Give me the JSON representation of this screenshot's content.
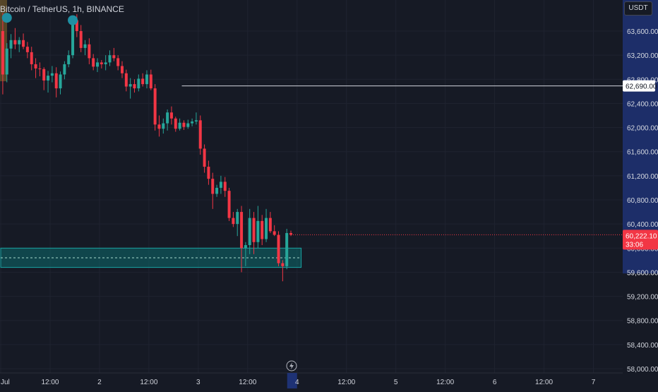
{
  "header": {
    "title": "Bitcoin / TetherUS, 1h, BINANCE",
    "currency": "USDT"
  },
  "price_label": {
    "value": "60,222.10",
    "countdown": "33:06"
  },
  "hline_label": "62,690.00",
  "colors": {
    "background": "#161a25",
    "up": "#26a69a",
    "down": "#f23645",
    "grid": "#1f2330",
    "zone_fill": "#0d6b6e",
    "zone_border": "#1aa3a3",
    "hline": "#d1d4dc",
    "axis_text": "#d1d4dc",
    "price_label_bg": "#f23645",
    "highlight_bg": "#1e3275",
    "marker": "#1f8fa3",
    "marker_band": "#8a6a2a"
  },
  "chart_data": {
    "type": "candlestick",
    "title": "Bitcoin / TetherUS, 1h, BINANCE",
    "ylim": [
      57950,
      63950
    ],
    "y_ticks": [
      "63,600.00",
      "63,200.00",
      "62,800.00",
      "62,400.00",
      "62,000.00",
      "61,600.00",
      "61,200.00",
      "60,800.00",
      "60,400.00",
      "60,000.00",
      "59,600.00",
      "59,200.00",
      "58,800.00",
      "58,400.00",
      "58,000.00"
    ],
    "y_tick_values": [
      63600,
      63200,
      62800,
      62400,
      62000,
      61600,
      61200,
      60800,
      60400,
      60000,
      59600,
      59200,
      58800,
      58400,
      58000
    ],
    "x_ticks": [
      "Jul",
      "12:00",
      "2",
      "12:00",
      "3",
      "12:00",
      "4",
      "12:00",
      "5",
      "12:00",
      "6",
      "12:00",
      "7"
    ],
    "x_tick_hours": [
      0,
      12,
      24,
      36,
      48,
      60,
      72,
      84,
      96,
      108,
      120,
      132,
      144
    ],
    "highlight_x_tick": 6,
    "candles": [
      [
        0.5,
        63600,
        63900,
        62550,
        62880
      ],
      [
        1.5,
        62880,
        63400,
        62750,
        63310
      ],
      [
        2.5,
        63310,
        63550,
        63150,
        63450
      ],
      [
        3.5,
        63450,
        63650,
        63300,
        63380
      ],
      [
        4.5,
        63380,
        63500,
        63250,
        63450
      ],
      [
        5.5,
        63450,
        63560,
        63300,
        63340
      ],
      [
        6.5,
        63340,
        63420,
        63150,
        63250
      ],
      [
        7.5,
        63250,
        63340,
        62950,
        63050
      ],
      [
        8.5,
        63050,
        63150,
        62820,
        62980
      ],
      [
        9.5,
        62980,
        63080,
        62850,
        62970
      ],
      [
        10.5,
        62970,
        63000,
        62620,
        62780
      ],
      [
        11.5,
        62780,
        62940,
        62580,
        62860
      ],
      [
        12.5,
        62860,
        63020,
        62750,
        62900
      ],
      [
        13.5,
        62900,
        63000,
        62500,
        62650
      ],
      [
        14.5,
        62650,
        62930,
        62550,
        62880
      ],
      [
        15.5,
        62880,
        63100,
        62800,
        63050
      ],
      [
        16.5,
        63050,
        63280,
        63000,
        63200
      ],
      [
        17.5,
        63200,
        63850,
        63150,
        63780
      ],
      [
        18.5,
        63780,
        63880,
        63500,
        63600
      ],
      [
        19.5,
        63600,
        63700,
        63250,
        63320
      ],
      [
        20.5,
        63320,
        63450,
        63200,
        63380
      ],
      [
        21.5,
        63380,
        63480,
        63050,
        63150
      ],
      [
        22.5,
        63150,
        63220,
        62950,
        63010
      ],
      [
        23.5,
        63010,
        63150,
        62920,
        63080
      ],
      [
        24.5,
        63080,
        63120,
        62980,
        63050
      ],
      [
        25.5,
        63050,
        63200,
        62950,
        63080
      ],
      [
        26.5,
        63080,
        63280,
        63020,
        63200
      ],
      [
        27.5,
        63200,
        63320,
        63100,
        63150
      ],
      [
        28.5,
        63150,
        63200,
        62950,
        63020
      ],
      [
        29.5,
        63020,
        63100,
        62820,
        62900
      ],
      [
        30.5,
        62900,
        62960,
        62600,
        62680
      ],
      [
        31.5,
        62680,
        62820,
        62480,
        62720
      ],
      [
        32.5,
        62720,
        62800,
        62580,
        62650
      ],
      [
        33.5,
        62650,
        62880,
        62600,
        62810
      ],
      [
        34.5,
        62810,
        62900,
        62680,
        62720
      ],
      [
        35.5,
        62720,
        62950,
        62650,
        62880
      ],
      [
        36.5,
        62880,
        62960,
        62620,
        62650
      ],
      [
        37.5,
        62650,
        62720,
        61950,
        62050
      ],
      [
        38.5,
        62050,
        62200,
        61850,
        61980
      ],
      [
        39.5,
        61980,
        62150,
        61900,
        62070
      ],
      [
        40.5,
        62070,
        62300,
        61950,
        62250
      ],
      [
        41.5,
        62250,
        62350,
        62050,
        62150
      ],
      [
        42.5,
        62150,
        62180,
        61930,
        61980
      ],
      [
        43.5,
        61980,
        62150,
        61950,
        62080
      ],
      [
        44.5,
        62080,
        62120,
        61960,
        62010
      ],
      [
        45.5,
        62010,
        62130,
        61980,
        62070
      ],
      [
        46.5,
        62070,
        62150,
        62020,
        62100
      ],
      [
        47.5,
        62100,
        62250,
        62050,
        62120
      ],
      [
        48.5,
        62120,
        62200,
        61550,
        61650
      ],
      [
        49.5,
        61650,
        61720,
        61250,
        61350
      ],
      [
        50.5,
        61350,
        61450,
        61050,
        61150
      ],
      [
        51.5,
        61150,
        61250,
        60650,
        60900
      ],
      [
        52.5,
        60900,
        61050,
        60850,
        61000
      ],
      [
        53.5,
        61000,
        61200,
        60900,
        61100
      ],
      [
        54.5,
        61100,
        61180,
        60850,
        60950
      ],
      [
        55.5,
        60950,
        61000,
        60450,
        60500
      ],
      [
        56.5,
        60500,
        60600,
        60350,
        60400
      ],
      [
        57.5,
        60400,
        60650,
        60200,
        60600
      ],
      [
        58.5,
        60600,
        60700,
        59600,
        60000
      ],
      [
        59.5,
        60000,
        60100,
        59700,
        60050
      ],
      [
        60.5,
        60050,
        60650,
        59900,
        60500
      ],
      [
        61.5,
        60500,
        60600,
        59900,
        60100
      ],
      [
        62.5,
        60100,
        60700,
        60000,
        60450
      ],
      [
        63.5,
        60450,
        60550,
        60050,
        60150
      ],
      [
        64.5,
        60150,
        60650,
        60100,
        60500
      ],
      [
        65.5,
        60500,
        60600,
        60250,
        60280
      ],
      [
        66.5,
        60280,
        60380,
        60200,
        60220
      ],
      [
        67.5,
        60220,
        60280,
        59700,
        59750
      ],
      [
        68.5,
        59750,
        59800,
        59450,
        59700
      ],
      [
        69.5,
        59700,
        60320,
        59650,
        60250
      ],
      [
        70.5,
        60250,
        60290,
        60200,
        60222.1
      ]
    ],
    "markers": [
      {
        "hour": 1.5,
        "price": 63820,
        "shape": "circle"
      },
      {
        "hour": 17.5,
        "price": 63780,
        "shape": "circle"
      }
    ],
    "hline": {
      "price": 62690,
      "start_hour": 44
    },
    "zone": {
      "price_top": 60000,
      "price_bottom": 59680,
      "start_hour": 0,
      "end_hour": 73,
      "mid_price": 59840
    },
    "last_price": 60222.1
  }
}
